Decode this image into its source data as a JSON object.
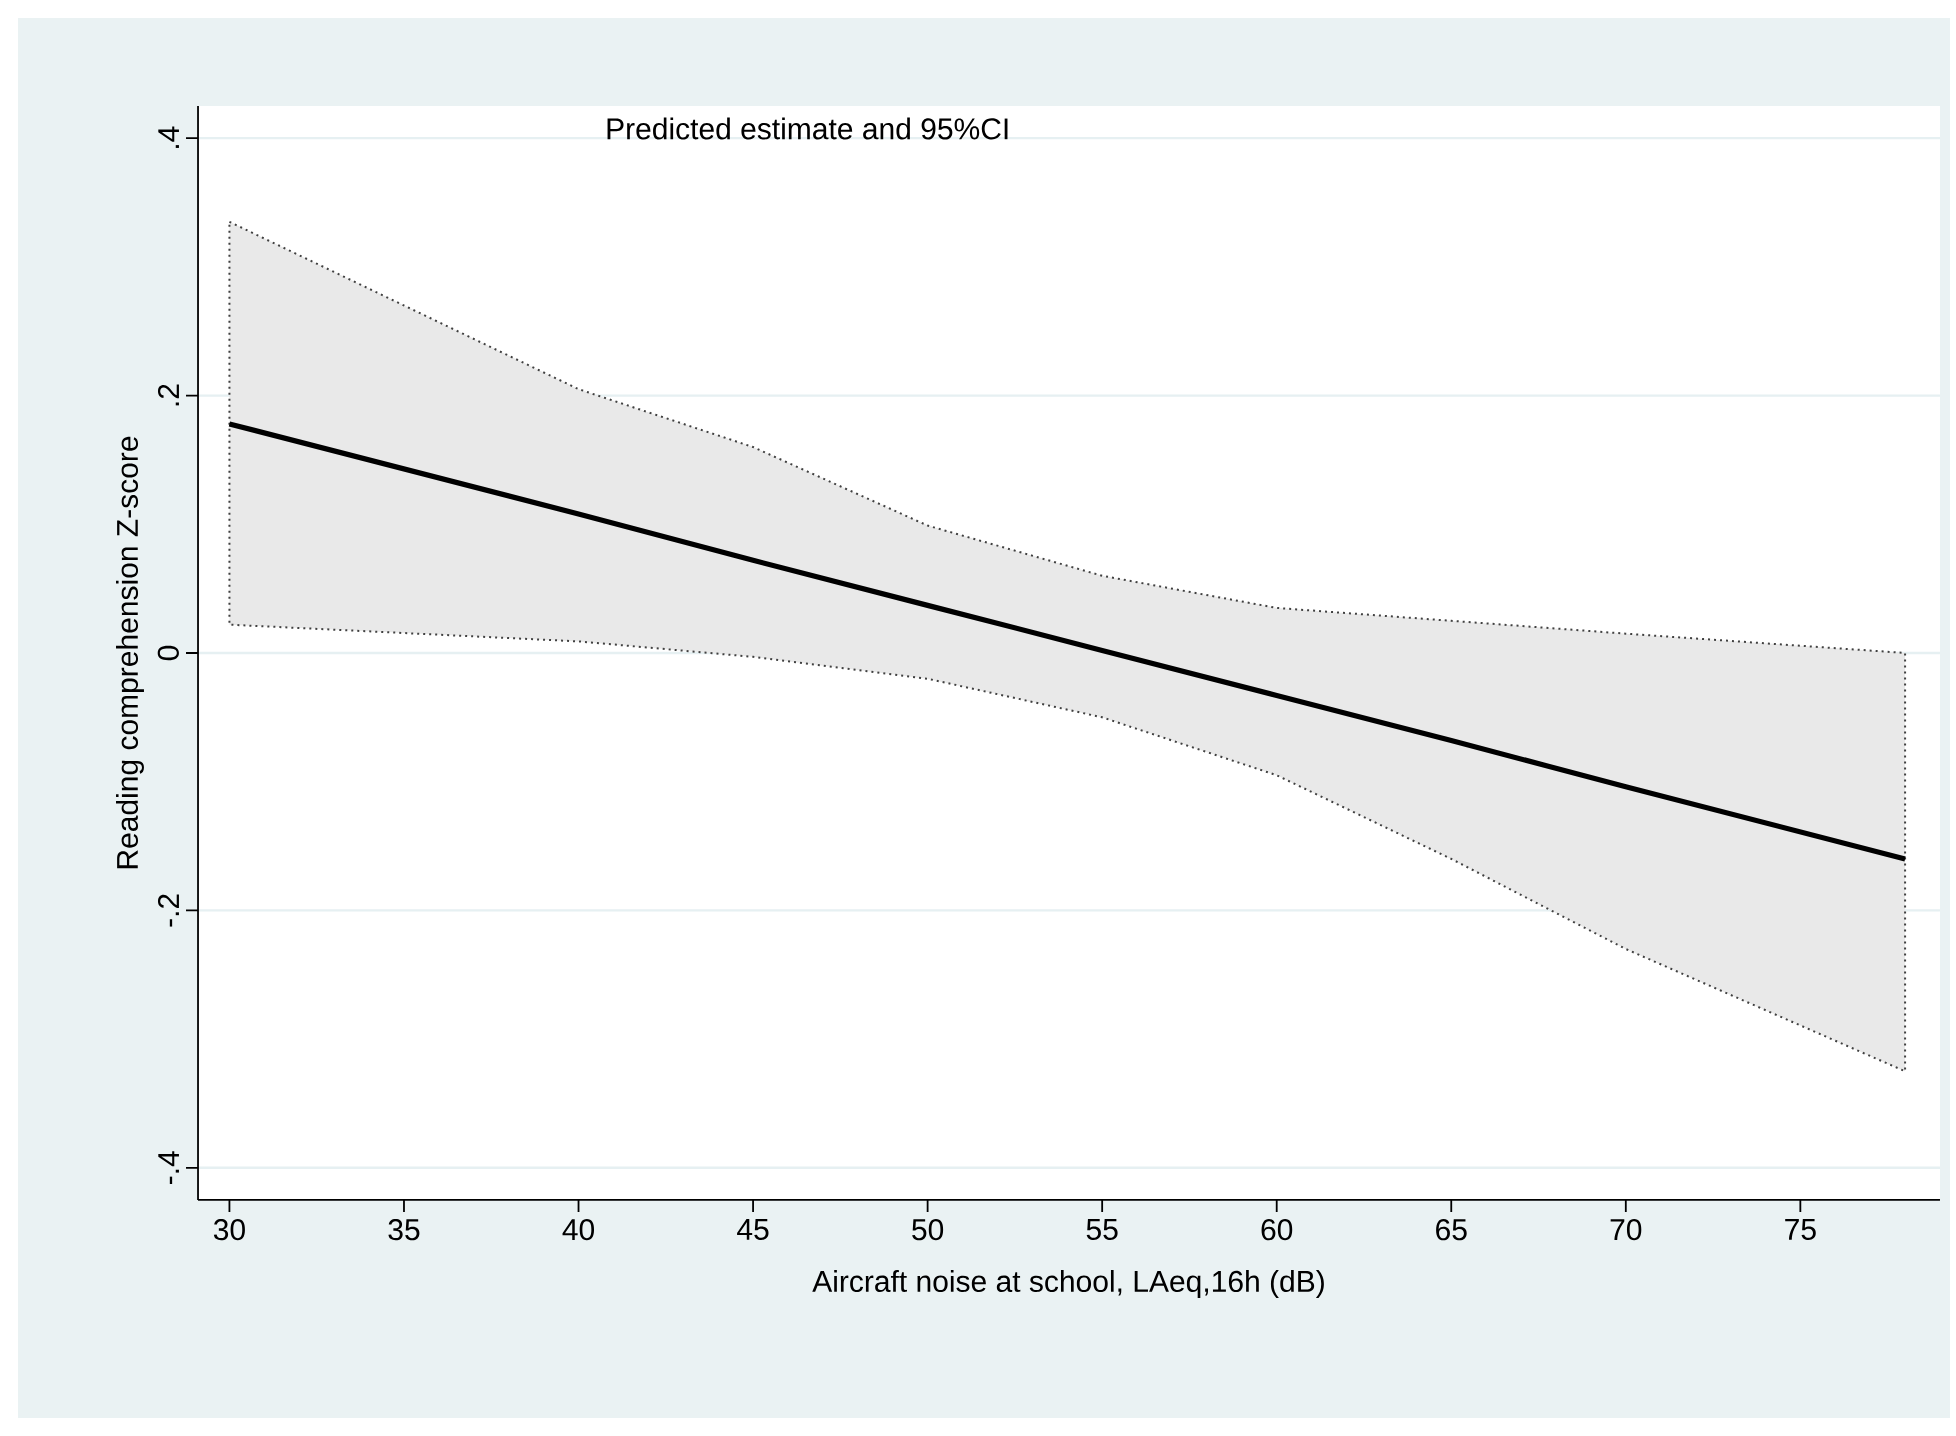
{
  "chart_data": {
    "type": "line",
    "title": "Predicted estimate and 95%CI",
    "xlabel": "Aircraft noise at school, LAeq,16h (dB)",
    "ylabel": "Reading comprehension Z-score",
    "xlim": [
      29.1,
      79
    ],
    "ylim": [
      -0.425,
      0.425
    ],
    "xticks": [
      30,
      35,
      40,
      45,
      50,
      55,
      60,
      65,
      70,
      75
    ],
    "yticks": [
      {
        "value": -0.4,
        "label": "-.4"
      },
      {
        "value": -0.2,
        "label": "-.2"
      },
      {
        "value": 0,
        "label": "0"
      },
      {
        "value": 0.2,
        "label": ".2"
      },
      {
        "value": 0.4,
        "label": ".4"
      }
    ],
    "grid": "y",
    "line_style": "solid",
    "series": [
      {
        "color": "#000000",
        "x": [
          30,
          40,
          45,
          50,
          55,
          60,
          65,
          70,
          78
        ],
        "values": [
          0.178,
          0.108,
          0.072,
          0.037,
          0.002,
          -0.033,
          -0.068,
          -0.104,
          -0.16
        ],
        "lower": [
          0.022,
          0.009,
          -0.003,
          -0.02,
          -0.05,
          -0.095,
          -0.16,
          -0.23,
          -0.325
        ],
        "upper": [
          0.335,
          0.205,
          0.16,
          0.099,
          0.06,
          0.035,
          0.025,
          0.015,
          0.0
        ]
      }
    ]
  }
}
